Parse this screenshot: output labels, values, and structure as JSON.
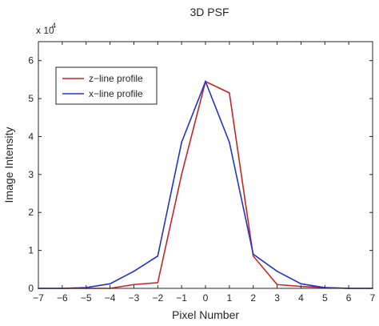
{
  "chart_data": {
    "type": "line",
    "title": "3D PSF",
    "xlabel": "Pixel Number",
    "ylabel": "Image Intensity",
    "y_exponent_label": "x 10",
    "y_exponent_power": "4",
    "xlim": [
      -7,
      7
    ],
    "ylim": [
      0,
      6.5
    ],
    "y_scale_note": "values in units of 1e4",
    "xticks": [
      -7,
      -6,
      -5,
      -4,
      -3,
      -2,
      -1,
      0,
      1,
      2,
      3,
      4,
      5,
      6,
      7
    ],
    "yticks": [
      0,
      1,
      2,
      3,
      4,
      5,
      6
    ],
    "grid": false,
    "legend_position": "top-left",
    "x": [
      -7,
      -6,
      -5,
      -4,
      -3,
      -2,
      -1,
      0,
      1,
      2,
      3,
      4,
      5,
      6,
      7
    ],
    "series": [
      {
        "name": "z−line profile",
        "color": "#cc2222",
        "values": [
          0,
          0,
          0,
          0,
          0.1,
          0.15,
          3.0,
          5.45,
          5.15,
          0.85,
          0.1,
          0.05,
          0.02,
          0,
          0
        ]
      },
      {
        "name": "x−line profile",
        "color": "#2233cc",
        "values": [
          0,
          0,
          0.02,
          0.12,
          0.45,
          0.85,
          3.85,
          5.45,
          3.85,
          0.9,
          0.45,
          0.12,
          0.02,
          0,
          0
        ]
      }
    ]
  }
}
